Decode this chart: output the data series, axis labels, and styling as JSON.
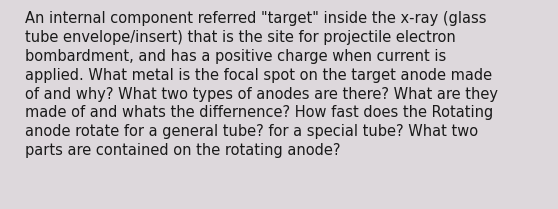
{
  "text_raw": "An internal component referred \"target\" inside the x-ray (glass tube envelope/insert) that is the site for projectile electron bombardment, and has a positive charge when current is applied. What metal is the focal spot on the target anode made of and why? What two types of anodes are there? What are they made of and whats the differnence? How fast does the Rotating anode rotate for a general tube? for a special tube? What two parts are contained on the rotating anode?",
  "lines": [
    "An internal component referred \"target\" inside the x-ray (glass",
    "tube envelope/insert) that is the site for projectile electron",
    "bombardment, and has a positive charge when current is",
    "applied. What metal is the focal spot on the target anode made",
    "of and why? What two types of anodes are there? What are they",
    "made of and whats the differnence? How fast does the Rotating",
    "anode rotate for a general tube? for a special tube? What two",
    "parts are contained on the rotating anode?"
  ],
  "background_color": "#ddd8dc",
  "text_color": "#1a1a1a",
  "font_size": 10.5,
  "fig_width": 5.58,
  "fig_height": 2.09,
  "dpi": 100
}
